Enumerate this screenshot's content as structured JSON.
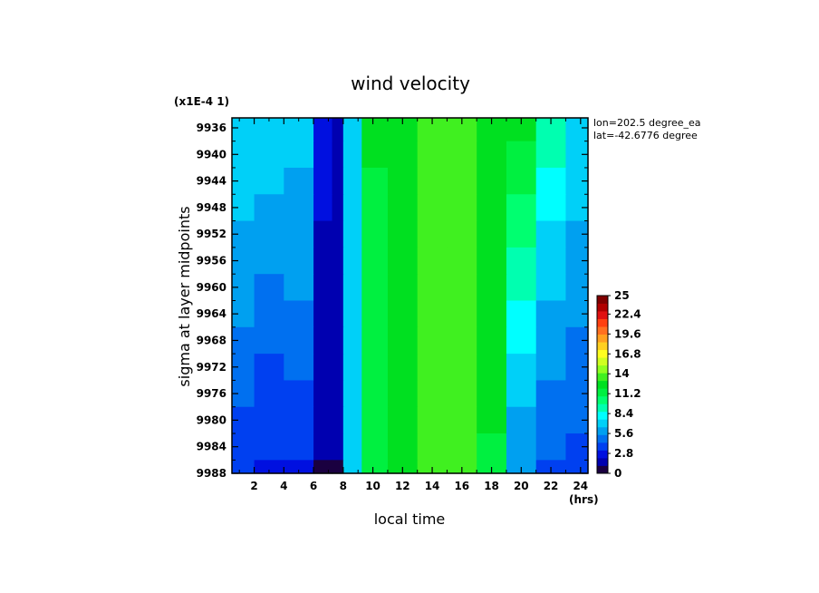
{
  "chart_data": {
    "type": "heatmap",
    "title": "wind velocity",
    "xlabel": "local time",
    "x_units": "(hrs)",
    "ylabel": "sigma at layer midpoints",
    "y_multiplier": "(x1E-4 1)",
    "xlim": [
      0.5,
      24.5
    ],
    "ylim": [
      9934.5,
      9988
    ],
    "x_ticks": [
      2,
      4,
      6,
      8,
      10,
      12,
      14,
      16,
      18,
      20,
      22,
      24
    ],
    "x_tick_labels": [
      "2",
      "4",
      "6",
      "8",
      "10",
      "12",
      "14",
      "16",
      "18",
      "20",
      "22",
      "24"
    ],
    "y_ticks": [
      9936,
      9940,
      9944,
      9948,
      9952,
      9956,
      9960,
      9964,
      9968,
      9972,
      9976,
      9980,
      9984,
      9988
    ],
    "y_tick_labels": [
      "9936",
      "9940",
      "9944",
      "9948",
      "9952",
      "9956",
      "9960",
      "9964",
      "9968",
      "9972",
      "9976",
      "9980",
      "9984",
      "9988"
    ],
    "annotations": [
      "lon=202.5 degree_ea",
      "lat=-42.6776 degree"
    ],
    "colorbar": {
      "min": 0,
      "max": 25,
      "tick_values": [
        0,
        2.8,
        5.6,
        8.4,
        11.2,
        14,
        16.8,
        19.6,
        22.4,
        25
      ],
      "tick_labels": [
        "0",
        "2.8",
        "5.6",
        "8.4",
        "11.2",
        "14",
        "16.8",
        "19.6",
        "22.4",
        "25"
      ],
      "colors": [
        "#1a0040",
        "#0000b0",
        "#0010e0",
        "#0040f0",
        "#0070f0",
        "#00a0f0",
        "#00d0f8",
        "#00ffff",
        "#00ffb0",
        "#00ff70",
        "#00f040",
        "#00e020",
        "#40f020",
        "#90ff20",
        "#d0ff20",
        "#ffff20",
        "#ffd020",
        "#ffa020",
        "#ff7020",
        "#ff4010",
        "#e01010",
        "#b00000",
        "#800000"
      ]
    },
    "x": [
      1,
      3,
      5,
      7,
      7.5,
      8.5,
      10,
      12,
      14,
      16,
      18,
      20,
      22,
      24
    ],
    "y": [
      9936,
      9940,
      9944,
      9948,
      9952,
      9956,
      9960,
      9964,
      9968,
      9972,
      9976,
      9980,
      9984,
      9988
    ],
    "z": [
      [
        7.5,
        7.2,
        7.0,
        2.5,
        1.5,
        7.5,
        12.0,
        13.0,
        13.5,
        13.6,
        13.0,
        12.0,
        9.5,
        7.5
      ],
      [
        7.3,
        7.0,
        6.8,
        2.4,
        1.5,
        7.5,
        12.0,
        13.0,
        13.5,
        13.6,
        13.0,
        11.5,
        9.0,
        7.3
      ],
      [
        7.0,
        6.7,
        6.5,
        2.3,
        1.5,
        7.4,
        11.9,
        12.9,
        13.5,
        13.6,
        12.9,
        11.0,
        8.5,
        7.0
      ],
      [
        6.7,
        6.4,
        6.3,
        2.2,
        1.4,
        7.3,
        11.9,
        12.9,
        13.5,
        13.6,
        12.8,
        10.5,
        8.0,
        6.8
      ],
      [
        6.4,
        6.1,
        6.0,
        2.1,
        1.4,
        7.3,
        11.8,
        12.8,
        13.5,
        13.6,
        12.7,
        10.0,
        7.6,
        6.5
      ],
      [
        6.1,
        5.8,
        5.8,
        2.0,
        1.4,
        7.2,
        11.8,
        12.8,
        13.4,
        13.6,
        12.6,
        9.5,
        7.2,
        6.2
      ],
      [
        5.8,
        5.4,
        5.5,
        1.9,
        1.3,
        7.2,
        11.7,
        12.7,
        13.4,
        13.5,
        12.5,
        9.0,
        6.8,
        5.9
      ],
      [
        5.5,
        5.0,
        5.2,
        1.8,
        1.3,
        7.1,
        11.7,
        12.7,
        13.4,
        13.5,
        12.4,
        8.5,
        6.4,
        5.6
      ],
      [
        5.2,
        4.6,
        4.9,
        1.7,
        1.3,
        7.1,
        11.6,
        12.6,
        13.4,
        13.5,
        12.3,
        8.0,
        6.0,
        5.3
      ],
      [
        4.9,
        4.2,
        4.6,
        1.5,
        1.2,
        7.0,
        11.6,
        12.6,
        13.3,
        13.5,
        12.2,
        7.5,
        5.6,
        5.0
      ],
      [
        4.6,
        3.8,
        4.2,
        1.3,
        1.2,
        7.0,
        11.5,
        12.5,
        13.3,
        13.5,
        12.1,
        7.0,
        5.2,
        4.7
      ],
      [
        4.3,
        3.5,
        3.8,
        1.2,
        1.1,
        6.9,
        11.5,
        12.5,
        13.3,
        13.4,
        12.0,
        6.5,
        4.8,
        4.4
      ],
      [
        4.0,
        3.3,
        3.4,
        1.1,
        1.1,
        6.9,
        11.4,
        12.4,
        13.2,
        13.4,
        11.9,
        6.0,
        4.4,
        4.1
      ],
      [
        3.8,
        3.1,
        3.0,
        1.0,
        1.0,
        6.8,
        11.4,
        12.4,
        13.2,
        13.4,
        11.8,
        5.6,
        4.0,
        3.8
      ]
    ]
  }
}
